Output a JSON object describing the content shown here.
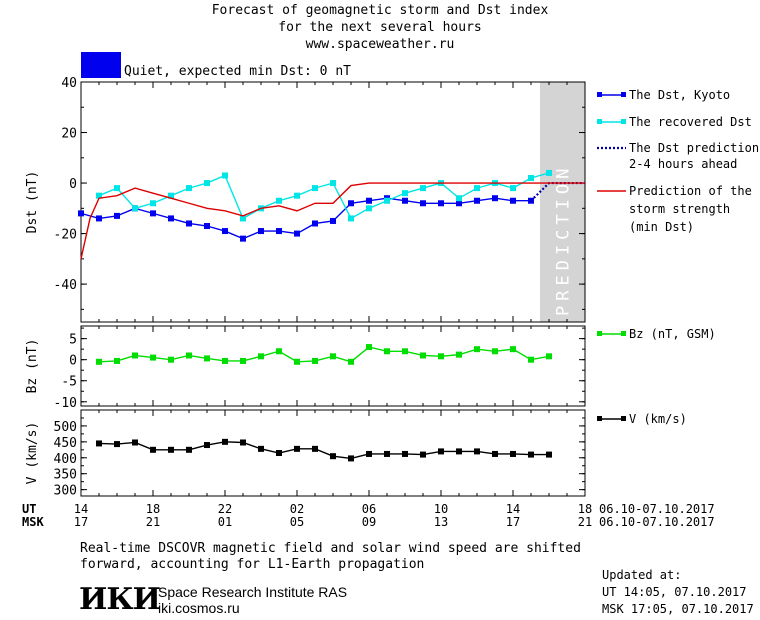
{
  "header": {
    "title_line1": "Forecast of geomagnetic storm and Dst index",
    "title_line2": "for the next several hours",
    "site": "www.spaceweather.ru"
  },
  "status": {
    "label": "Quiet, expected min Dst: 0 nT",
    "color": "#0000ee"
  },
  "legend": {
    "dst_kyoto": "The Dst, Kyoto",
    "dst_recovered": "The recovered Dst",
    "dst_prediction_1": "The Dst prediction",
    "dst_prediction_2": "2-4 hours ahead",
    "storm_1": "Prediction of the",
    "storm_2": "storm strength",
    "storm_3": "(min Dst)",
    "bz": "Bz (nT, GSM)",
    "v": "V (km/s)"
  },
  "prediction_band_label": "PREDICTION",
  "time_axis": {
    "ut_label": "UT",
    "msk_label": "MSK",
    "ut_ticks": [
      "14",
      "18",
      "22",
      "02",
      "06",
      "10",
      "14",
      "18"
    ],
    "msk_ticks": [
      "17",
      "21",
      "01",
      "05",
      "09",
      "13",
      "17",
      "21"
    ],
    "date_range_ut": "06.10-07.10.2017",
    "date_range_msk": "06.10-07.10.2017"
  },
  "footer": {
    "note_line1": "Real-time DSCOVR magnetic field and solar wind speed are shifted",
    "note_line2": "forward, accounting for L1-Earth propagation",
    "logo": "ИКИ",
    "institute": "Space Research Institute RAS",
    "institute_url": "iki.cosmos.ru",
    "updated_title": "Updated at:",
    "updated_ut": "UT   14:05, 07.10.2017",
    "updated_msk": "MSK 17:05, 07.10.2017"
  },
  "chart_data": [
    {
      "type": "line",
      "x_unit": "hours from 14 UT 06.10.2017",
      "xlim": [
        0,
        28
      ],
      "prediction_band": [
        25.5,
        28
      ],
      "ylabel": "Dst (nT)",
      "ylim": [
        -55,
        40
      ],
      "yticks": [
        40,
        20,
        0,
        -20,
        -40
      ],
      "series": [
        {
          "name": "The Dst, Kyoto",
          "color": "#0000ee",
          "marker": "square",
          "x": [
            0,
            1,
            2,
            3,
            4,
            5,
            6,
            7,
            8,
            9,
            10,
            11,
            12,
            13,
            14,
            15,
            16,
            17,
            18,
            19,
            20,
            21,
            22,
            23,
            24,
            25
          ],
          "y": [
            -12,
            -14,
            -13,
            -10,
            -12,
            -14,
            -16,
            -17,
            -19,
            -22,
            -19,
            -19,
            -20,
            -16,
            -15,
            -8,
            -7,
            -6,
            -7,
            -8,
            -8,
            -8,
            -7,
            -6,
            -7,
            -7
          ]
        },
        {
          "name": "The recovered Dst",
          "color": "#00e6e6",
          "marker": "square",
          "x": [
            1,
            2,
            3,
            4,
            5,
            6,
            7,
            8,
            9,
            10,
            11,
            12,
            13,
            14,
            15,
            16,
            17,
            18,
            19,
            20,
            21,
            22,
            23,
            24,
            25,
            26
          ],
          "y": [
            -5,
            -2,
            -10,
            -8,
            -5,
            -2,
            0,
            3,
            -14,
            -10,
            -7,
            -5,
            -2,
            0,
            -14,
            -10,
            -7,
            -4,
            -2,
            0,
            -6,
            -2,
            0,
            -2,
            2,
            4
          ]
        },
        {
          "name": "The Dst prediction 2-4 hours ahead",
          "color": "#0000aa",
          "style": "dotted",
          "x": [
            25,
            26,
            27,
            28
          ],
          "y": [
            -7,
            0,
            0,
            0
          ]
        },
        {
          "name": "Prediction of the storm strength (min Dst)",
          "color": "#dd0000",
          "x": [
            0,
            0.5,
            1,
            2,
            3,
            4,
            5,
            6,
            7,
            8,
            9,
            10,
            11,
            12,
            13,
            14,
            15,
            16,
            17,
            18,
            19,
            20,
            21,
            22,
            23,
            24,
            25,
            26,
            27,
            28
          ],
          "y": [
            -30,
            -14,
            -6,
            -5,
            -2,
            -4,
            -6,
            -8,
            -10,
            -11,
            -13,
            -10,
            -9,
            -11,
            -8,
            -8,
            -1,
            0,
            0,
            0,
            0,
            0,
            0,
            0,
            0,
            0,
            0,
            0,
            0,
            0
          ]
        }
      ]
    },
    {
      "type": "line",
      "ylabel": "Bz (nT)",
      "ylim": [
        -11,
        8
      ],
      "yticks": [
        5,
        0,
        -5,
        -10
      ],
      "series": [
        {
          "name": "Bz (nT, GSM)",
          "color": "#00dd00",
          "marker": "square",
          "x": [
            1,
            2,
            3,
            4,
            5,
            6,
            7,
            8,
            9,
            10,
            11,
            12,
            13,
            14,
            15,
            16,
            17,
            18,
            19,
            20,
            21,
            22,
            23,
            24,
            25,
            26
          ],
          "y": [
            -0.5,
            -0.3,
            1,
            0.5,
            0,
            1,
            0.3,
            -0.3,
            -0.3,
            0.8,
            2,
            -0.5,
            -0.3,
            0.8,
            -0.5,
            3,
            2,
            2,
            1,
            0.8,
            1.2,
            2.5,
            2,
            2.5,
            0,
            0.8
          ]
        }
      ]
    },
    {
      "type": "line",
      "ylabel": "V (km/s)",
      "ylim": [
        280,
        550
      ],
      "yticks": [
        500,
        450,
        400,
        350,
        300
      ],
      "series": [
        {
          "name": "V (km/s)",
          "color": "#000000",
          "marker": "square",
          "x": [
            1,
            2,
            3,
            4,
            5,
            6,
            7,
            8,
            9,
            10,
            11,
            12,
            13,
            14,
            15,
            16,
            17,
            18,
            19,
            20,
            21,
            22,
            23,
            24,
            25,
            26
          ],
          "y": [
            445,
            443,
            448,
            425,
            425,
            425,
            440,
            450,
            448,
            428,
            415,
            428,
            428,
            405,
            398,
            412,
            412,
            412,
            410,
            420,
            420,
            420,
            412,
            412,
            410,
            410
          ]
        }
      ]
    }
  ]
}
